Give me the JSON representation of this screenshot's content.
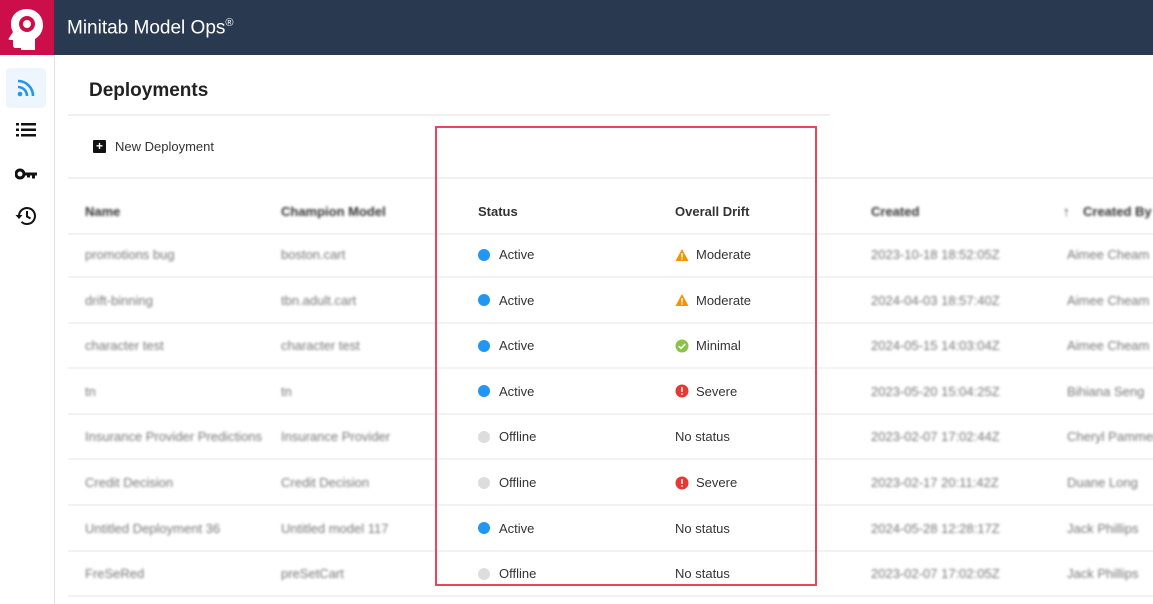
{
  "app": {
    "title": "Minitab Model Ops",
    "trademark": "®",
    "brand_color": "#cc0f4b",
    "header_color": "#293a50"
  },
  "sidebar": {
    "items": [
      {
        "icon": "rss-icon",
        "name": "deployments",
        "active": true
      },
      {
        "icon": "list-icon",
        "name": "models"
      },
      {
        "icon": "key-icon",
        "name": "keys"
      },
      {
        "icon": "history-icon",
        "name": "history"
      }
    ]
  },
  "page": {
    "title": "Deployments",
    "new_button": "New Deployment"
  },
  "table": {
    "columns": [
      "Name",
      "Champion Model",
      "Status",
      "Overall Drift",
      "Created",
      "Created By"
    ],
    "sort_indicator": "↑",
    "rows": [
      {
        "name": "promotions bug",
        "model": "boston.cart",
        "status": "Active",
        "drift": "Moderate",
        "created": "2023-10-18 18:52:05Z",
        "by": "Aimee Cheam"
      },
      {
        "name": "drift-binning",
        "model": "tbn.adult.cart",
        "status": "Active",
        "drift": "Moderate",
        "created": "2024-04-03 18:57:40Z",
        "by": "Aimee Cheam"
      },
      {
        "name": "character test",
        "model": "character test",
        "status": "Active",
        "drift": "Minimal",
        "created": "2024-05-15 14:03:04Z",
        "by": "Aimee Cheam"
      },
      {
        "name": "tn",
        "model": "tn",
        "status": "Active",
        "drift": "Severe",
        "created": "2023-05-20 15:04:25Z",
        "by": "Bihiana Seng"
      },
      {
        "name": "Insurance Provider Predictions",
        "model": "Insurance Provider",
        "status": "Offline",
        "drift": "No status",
        "created": "2023-02-07 17:02:44Z",
        "by": "Cheryl Pammer"
      },
      {
        "name": "Credit Decision",
        "model": "Credit Decision",
        "status": "Offline",
        "drift": "Severe",
        "created": "2023-02-17 20:11:42Z",
        "by": "Duane Long"
      },
      {
        "name": "Untitled Deployment 36",
        "model": "Untitled model 117",
        "status": "Active",
        "drift": "No status",
        "created": "2024-05-28 12:28:17Z",
        "by": "Jack Phillips"
      },
      {
        "name": "FreSeRed",
        "model": "preSetCart",
        "status": "Offline",
        "drift": "No status",
        "created": "2023-02-07 17:02:05Z",
        "by": "Jack Phillips"
      }
    ]
  },
  "colors": {
    "Active": "#2196f3",
    "Offline": "#dddddd",
    "Moderate": "#f59300",
    "Minimal": "#8bc34a",
    "Severe": "#e53935",
    "highlight": "#e8455f"
  }
}
